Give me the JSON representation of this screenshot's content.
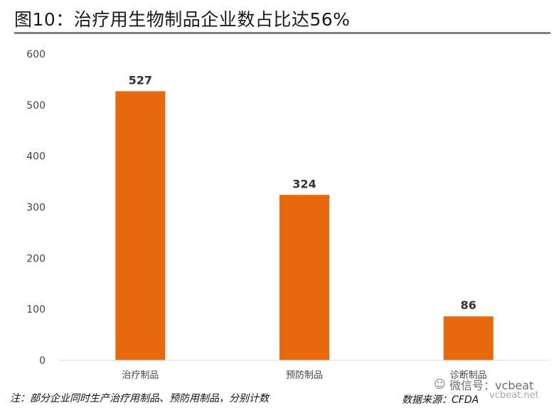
{
  "header": {
    "title": "图10：治疗用生物制品企业数占比达56%"
  },
  "chart_data": {
    "type": "bar",
    "title": "图10：治疗用生物制品企业数占比达56%",
    "categories": [
      "治疗制品",
      "预防制品",
      "诊断制品"
    ],
    "values": [
      527,
      324,
      86
    ],
    "data_labels": [
      "527",
      "324",
      "86"
    ],
    "ylim": [
      0,
      600
    ],
    "yticks": [
      "0",
      "100",
      "200",
      "300",
      "400",
      "500",
      "600"
    ],
    "grid": false,
    "xlabel": "",
    "ylabel": "",
    "bar_color": "#E8690B",
    "axis_color": "#D9D9D9",
    "tick_color": "#444444"
  },
  "footer": {
    "note": "注：部分企业同时生产治疗用制品、预防用制品，分别计数",
    "source": "数据来源：CFDA"
  },
  "watermark": {
    "icon": "wechat-icon",
    "line1": "微信号：vcbeat",
    "line2": "vcbeat.net"
  }
}
